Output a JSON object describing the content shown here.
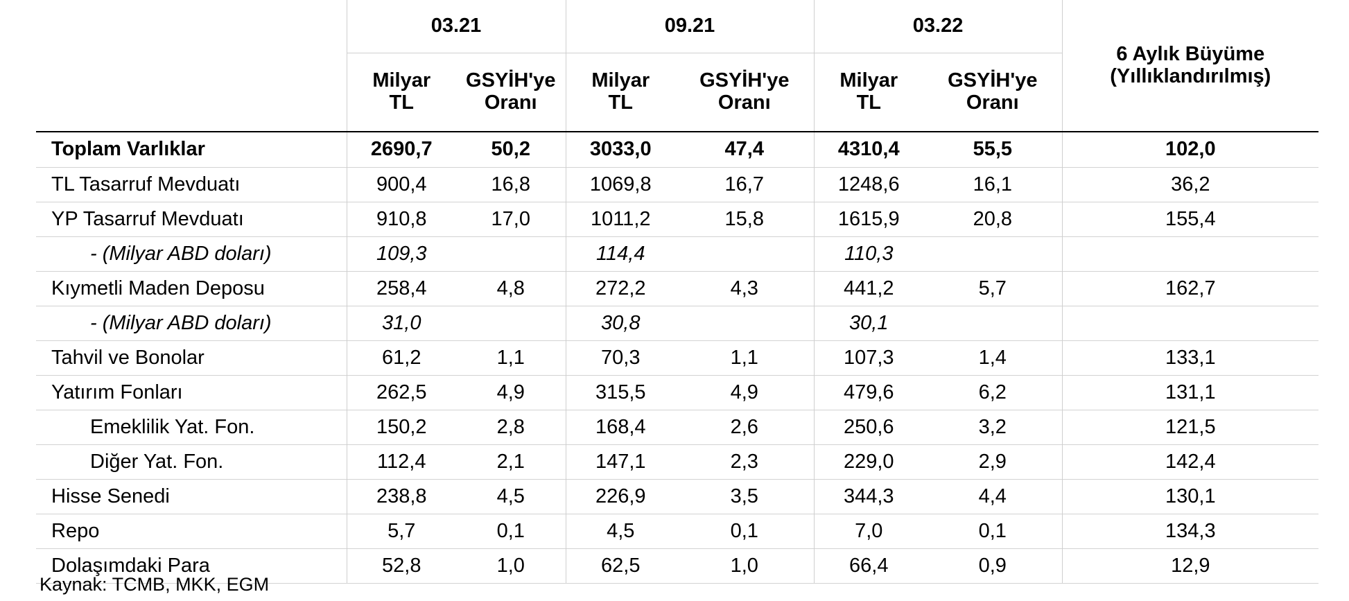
{
  "header": {
    "periods": [
      "03.21",
      "09.21",
      "03.22"
    ],
    "unit_label": "Milyar TL",
    "ratio_label": "GSYİH'ye Oranı",
    "growth_label": "6 Aylık Büyüme (Yıllıklandırılmış)"
  },
  "rows": [
    {
      "label": "Toplam Varlıklar",
      "v": [
        "2690,7",
        "50,2",
        "3033,0",
        "47,4",
        "4310,4",
        "55,5",
        "102,0"
      ]
    },
    {
      "label": "TL Tasarruf Mevduatı",
      "v": [
        "900,4",
        "16,8",
        "1069,8",
        "16,7",
        "1248,6",
        "16,1",
        "36,2"
      ]
    },
    {
      "label": "YP Tasarruf Mevduatı",
      "v": [
        "910,8",
        "17,0",
        "1011,2",
        "15,8",
        "1615,9",
        "20,8",
        "155,4"
      ]
    },
    {
      "label": "- (Milyar ABD doları)",
      "v": [
        "109,3",
        "",
        "114,4",
        "",
        "110,3",
        "",
        ""
      ]
    },
    {
      "label": "Kıymetli Maden Deposu",
      "v": [
        "258,4",
        "4,8",
        "272,2",
        "4,3",
        "441,2",
        "5,7",
        "162,7"
      ]
    },
    {
      "label": "- (Milyar ABD doları)",
      "v": [
        "31,0",
        "",
        "30,8",
        "",
        "30,1",
        "",
        ""
      ]
    },
    {
      "label": "Tahvil ve Bonolar",
      "v": [
        "61,2",
        "1,1",
        "70,3",
        "1,1",
        "107,3",
        "1,4",
        "133,1"
      ]
    },
    {
      "label": "Yatırım Fonları",
      "v": [
        "262,5",
        "4,9",
        "315,5",
        "4,9",
        "479,6",
        "6,2",
        "131,1"
      ]
    },
    {
      "label": "Emeklilik Yat. Fon.",
      "v": [
        "150,2",
        "2,8",
        "168,4",
        "2,6",
        "250,6",
        "3,2",
        "121,5"
      ]
    },
    {
      "label": "Diğer Yat. Fon.",
      "v": [
        "112,4",
        "2,1",
        "147,1",
        "2,3",
        "229,0",
        "2,9",
        "142,4"
      ]
    },
    {
      "label": "Hisse Senedi",
      "v": [
        "238,8",
        "4,5",
        "226,9",
        "3,5",
        "344,3",
        "4,4",
        "130,1"
      ]
    },
    {
      "label": "Repo",
      "v": [
        "5,7",
        "0,1",
        "4,5",
        "0,1",
        "7,0",
        "0,1",
        "134,3"
      ]
    },
    {
      "label": "Dolaşımdaki Para",
      "v": [
        "52,8",
        "1,0",
        "62,5",
        "1,0",
        "66,4",
        "0,9",
        "12,9"
      ]
    }
  ],
  "source": "Kaynak: TCMB, MKK, EGM"
}
